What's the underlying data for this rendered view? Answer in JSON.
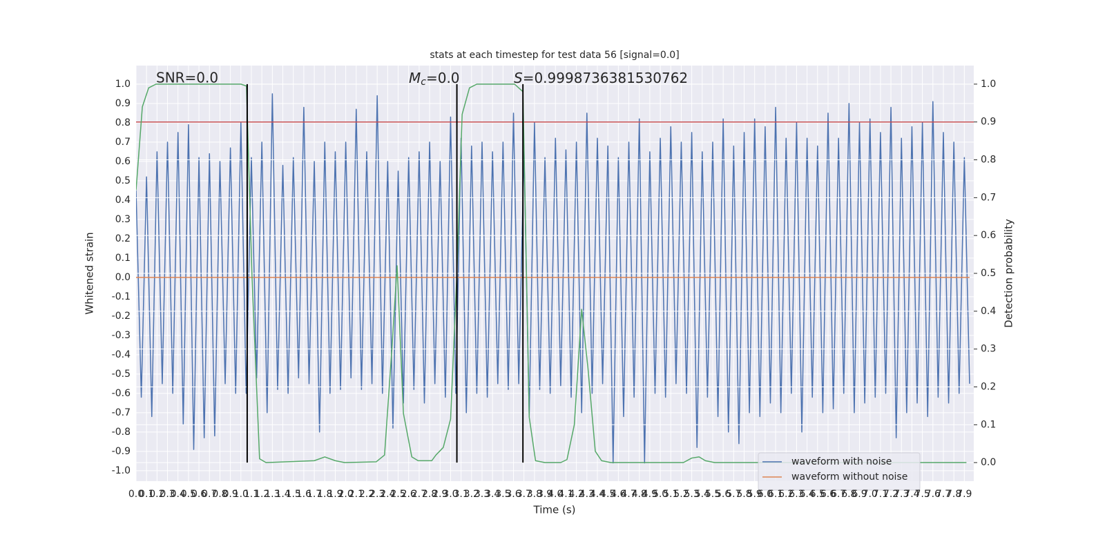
{
  "chart_data": {
    "type": "line",
    "title": "stats at each timestep for test data 56 [signal=0.0]",
    "x_label": "Time (s)",
    "y_label": "Whitened strain",
    "y2_label": "Detection probability",
    "annotations": {
      "snr": "SNR=0.0",
      "mc_symbol": "M",
      "mc_subscript": "c",
      "mc_value": "=0.0",
      "s_symbol": "S",
      "s_value": "=0.9998736381530762"
    },
    "xlim": [
      0,
      7.99
    ],
    "ylim": [
      -1.054,
      1.096
    ],
    "y2lim": [
      -0.049,
      1.049
    ],
    "xticks": [
      {
        "value": 0,
        "label": "0.0"
      },
      0.1,
      0.2,
      0.3,
      0.4,
      0.5,
      0.6,
      0.7,
      0.8,
      0.9,
      {
        "value": 1,
        "label": "1.0"
      },
      1.1,
      1.2,
      1.3,
      1.4,
      1.5,
      1.6,
      1.7,
      1.8,
      1.9,
      {
        "value": 2,
        "label": "2.0"
      },
      2.1,
      2.2,
      2.3,
      2.4,
      2.5,
      2.6,
      2.7,
      2.8,
      2.9,
      {
        "value": 3,
        "label": "3.0"
      },
      3.1,
      3.2,
      3.3,
      3.4,
      3.5,
      3.6,
      3.7,
      3.8,
      3.9,
      {
        "value": 4,
        "label": "4.0"
      },
      4.1,
      4.2,
      4.3,
      4.4,
      4.5,
      4.6,
      4.7,
      4.8,
      4.9,
      {
        "value": 5,
        "label": "5.0"
      },
      5.1,
      5.2,
      5.3,
      5.4,
      5.5,
      5.6,
      5.7,
      5.8,
      5.9,
      {
        "value": 6,
        "label": "6.0"
      },
      6.1,
      6.2,
      6.3,
      6.4,
      6.5,
      6.6,
      6.7,
      6.8,
      6.9,
      {
        "value": 7,
        "label": "7.0"
      },
      7.1,
      7.2,
      7.3,
      7.4,
      7.5,
      7.6,
      7.7,
      7.8,
      7.9
    ],
    "yticks": [
      {
        "value": -1,
        "label": "-1.0"
      },
      -0.9,
      -0.8,
      -0.7,
      -0.6,
      -0.5,
      -0.4,
      -0.3,
      -0.2,
      -0.1,
      {
        "value": 0,
        "label": "0.0"
      },
      0.1,
      0.2,
      0.3,
      0.4,
      0.5,
      0.6,
      0.7,
      0.8,
      0.9,
      {
        "value": 1,
        "label": "1.0"
      }
    ],
    "y2ticks": [
      {
        "value": 0,
        "label": "0.0"
      },
      0.1,
      0.2,
      0.3,
      0.4,
      0.5,
      0.6,
      0.7,
      0.8,
      0.9,
      {
        "value": 1,
        "label": "1.0"
      }
    ],
    "grid": true,
    "legend": "lower right",
    "series": [
      {
        "name": "waveform with noise",
        "color": "#4c72b0",
        "x": [
          0,
          0.05,
          0.1,
          0.15,
          0.2,
          0.25,
          0.3,
          0.35,
          0.4,
          0.45,
          0.5,
          0.55,
          0.6,
          0.65,
          0.7,
          0.75,
          0.8,
          0.85,
          0.9,
          0.95,
          1,
          1.05,
          1.1,
          1.15,
          1.2,
          1.25,
          1.3,
          1.35,
          1.4,
          1.45,
          1.5,
          1.55,
          1.6,
          1.65,
          1.7,
          1.75,
          1.8,
          1.85,
          1.9,
          1.95,
          2,
          2.05,
          2.1,
          2.15,
          2.2,
          2.25,
          2.3,
          2.35,
          2.4,
          2.45,
          2.5,
          2.55,
          2.6,
          2.65,
          2.7,
          2.75,
          2.8,
          2.85,
          2.9,
          2.95,
          3,
          3.05,
          3.1,
          3.15,
          3.2,
          3.25,
          3.3,
          3.35,
          3.4,
          3.45,
          3.5,
          3.55,
          3.6,
          3.65,
          3.7,
          3.75,
          3.8,
          3.85,
          3.9,
          3.95,
          4,
          4.05,
          4.1,
          4.15,
          4.2,
          4.25,
          4.3,
          4.35,
          4.4,
          4.45,
          4.5,
          4.55,
          4.6,
          4.65,
          4.7,
          4.75,
          4.8,
          4.85,
          4.9,
          4.95,
          5,
          5.05,
          5.1,
          5.15,
          5.2,
          5.25,
          5.3,
          5.35,
          5.4,
          5.45,
          5.5,
          5.55,
          5.6,
          5.65,
          5.7,
          5.75,
          5.8,
          5.85,
          5.9,
          5.95,
          6,
          6.05,
          6.1,
          6.15,
          6.2,
          6.25,
          6.3,
          6.35,
          6.4,
          6.45,
          6.5,
          6.55,
          6.6,
          6.65,
          6.7,
          6.75,
          6.8,
          6.85,
          6.9,
          6.95,
          7,
          7.05,
          7.1,
          7.15,
          7.2,
          7.25,
          7.3,
          7.35,
          7.4,
          7.45,
          7.5,
          7.55,
          7.6,
          7.65,
          7.7,
          7.75,
          7.8,
          7.85,
          7.9,
          7.95
        ],
        "values": [
          0.45,
          -0.62,
          0.52,
          -0.72,
          0.65,
          -0.55,
          0.7,
          -0.6,
          0.75,
          -0.76,
          0.79,
          -0.89,
          0.62,
          -0.83,
          0.64,
          -0.82,
          0.6,
          -0.55,
          0.67,
          -0.6,
          0.8,
          -0.6,
          0.62,
          -0.52,
          0.7,
          -0.7,
          0.95,
          -0.58,
          0.58,
          -0.6,
          0.62,
          -0.52,
          0.88,
          -0.55,
          0.6,
          -0.8,
          0.7,
          -0.6,
          0.65,
          -0.58,
          0.7,
          -0.52,
          0.87,
          -0.58,
          0.65,
          -0.55,
          0.94,
          -0.6,
          0.6,
          -0.78,
          0.55,
          -0.65,
          0.62,
          -0.58,
          0.65,
          -0.65,
          0.7,
          -0.55,
          0.6,
          -0.62,
          0.83,
          -0.6,
          0.72,
          -0.7,
          0.68,
          -0.6,
          0.7,
          -0.62,
          0.65,
          -0.55,
          0.7,
          -0.58,
          0.85,
          -0.55,
          0.65,
          -0.72,
          0.8,
          -0.58,
          0.62,
          -0.6,
          0.72,
          -0.56,
          0.66,
          -0.62,
          0.7,
          -0.7,
          0.85,
          -0.6,
          0.72,
          -0.55,
          0.68,
          -0.96,
          0.62,
          -0.72,
          0.7,
          -0.62,
          0.82,
          -0.96,
          0.65,
          -0.6,
          0.72,
          -0.62,
          0.78,
          -0.55,
          0.7,
          -0.6,
          0.75,
          -0.88,
          0.65,
          -0.62,
          0.7,
          -0.72,
          0.82,
          -0.8,
          0.68,
          -0.86,
          0.75,
          -0.7,
          0.82,
          -0.72,
          0.78,
          -0.65,
          0.88,
          -0.7,
          0.72,
          -0.6,
          0.8,
          -0.8,
          0.72,
          -0.62,
          0.68,
          -0.7,
          0.85,
          -0.68,
          0.72,
          -0.6,
          0.9,
          -0.7,
          0.8,
          -0.65,
          0.82,
          -0.62,
          0.75,
          -0.6,
          0.88,
          -0.83,
          0.72,
          -0.7,
          0.78,
          -0.65,
          0.8,
          -0.72,
          0.91,
          -0.62,
          0.75,
          -0.65,
          0.7,
          -0.6,
          0.62,
          -0.55
        ]
      },
      {
        "name": "waveform without noise",
        "color": "#dd8452",
        "x": [
          0,
          7.95
        ],
        "values": [
          0,
          0
        ]
      },
      {
        "color": "#55a868",
        "axis": "y2",
        "x": [
          0,
          0.06,
          0.12,
          0.19,
          1.0,
          1.053,
          1.106,
          1.178,
          1.24,
          1.7,
          1.8,
          1.9,
          1.99,
          2.29,
          2.37,
          2.44,
          2.49,
          2.55,
          2.63,
          2.69,
          2.82,
          2.86,
          2.93,
          3.0,
          3.06,
          3.11,
          3.18,
          3.25,
          3.61,
          3.69,
          3.75,
          3.81,
          3.9,
          4.05,
          4.11,
          4.18,
          4.25,
          4.31,
          4.38,
          4.44,
          4.53,
          5.22,
          5.3,
          5.37,
          5.43,
          5.52,
          7.92
        ],
        "values": [
          0.72,
          0.94,
          0.99,
          1.0,
          1.0,
          0.995,
          0.49,
          0.01,
          0.0,
          0.005,
          0.015,
          0.005,
          0.0,
          0.002,
          0.02,
          0.3,
          0.52,
          0.13,
          0.015,
          0.005,
          0.005,
          0.02,
          0.04,
          0.115,
          0.5,
          0.92,
          0.99,
          1.0,
          1.0,
          0.98,
          0.12,
          0.005,
          0.0,
          0.0,
          0.008,
          0.1,
          0.405,
          0.25,
          0.03,
          0.005,
          0.0,
          0.0,
          0.012,
          0.015,
          0.005,
          0.0,
          0.0
        ]
      }
    ],
    "threshold": {
      "value": 0.9,
      "axis": "y2",
      "color": "#c44e52"
    },
    "vlines": {
      "x": [
        1.06,
        3.06,
        3.69
      ],
      "ymin": 0,
      "ymax": 1,
      "axis": "y2",
      "color": "#000000"
    }
  }
}
